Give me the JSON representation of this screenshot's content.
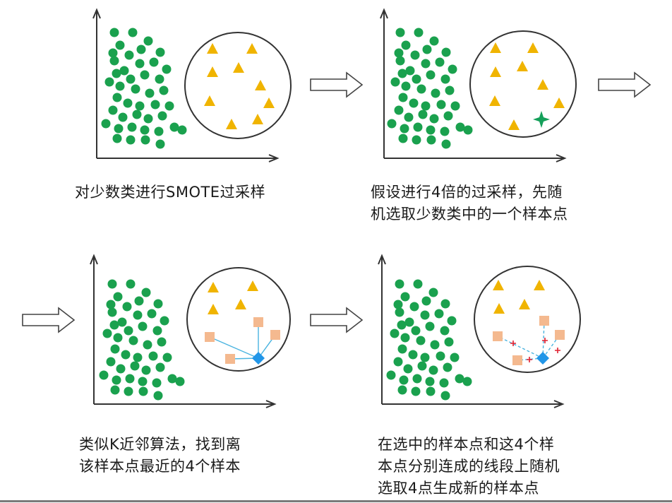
{
  "captions": {
    "step1": "对少数类进行SMOTE过采样",
    "step2": "假设进行4倍的过采样，先随\n机选取少数类中的一个样本点",
    "step3": "类似K近邻算法，找到离\n该样本点最近的4个样本",
    "step4": "在选中的样本点和这4个样\n本点分别连成的线段上随机\n选取4点生成新的样本点"
  },
  "colors": {
    "majority": "#1aa14e",
    "minority": "#f0b400",
    "neighbor": "#f4b98f",
    "selected": "#2196e8",
    "line": "#4ab4e0",
    "synthetic": "#e02030",
    "highlight": "#15a05a",
    "text": "#1a1a1a"
  },
  "icons": {
    "majority_point": "green-circle",
    "minority_point": "yellow-triangle",
    "highlight_point": "green-four-point-star",
    "selected_point": "blue-diamond",
    "neighbor_point": "orange-square",
    "synthetic_point": "red-plus",
    "arrow": "outline-right-arrow"
  }
}
